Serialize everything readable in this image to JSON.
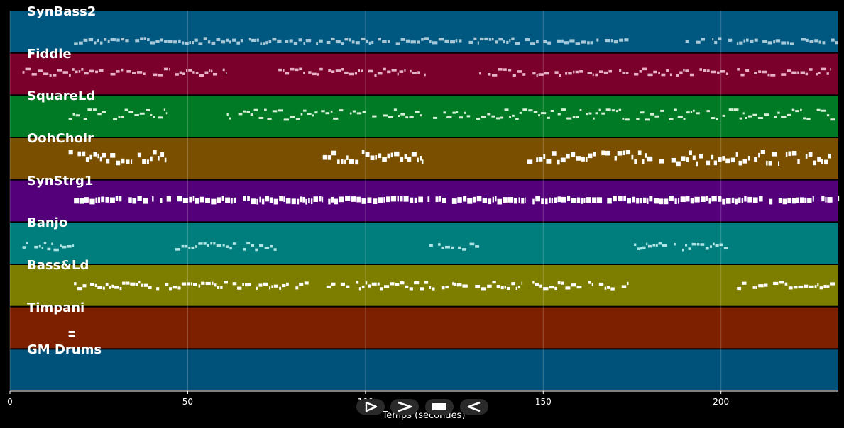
{
  "chart_data": {
    "type": "piano-roll",
    "xlabel": "Temps (secondes)",
    "xlim": [
      0,
      233
    ],
    "xticks": [
      0,
      50,
      100,
      150,
      200
    ],
    "tracks": [
      {
        "name": "SynBass2",
        "color": "#00577f",
        "note_color": "#a9c9d8",
        "segments": [
          [
            18,
            88
          ],
          [
            89,
            175
          ],
          [
            190,
            233
          ]
        ],
        "pitch_base": 0.72,
        "pitch_spread": 0.06,
        "note_h": 0.07
      },
      {
        "name": "Fiddle",
        "color": "#7a002b",
        "note_color": "#e6b3c4",
        "segments": [
          [
            3.5,
            45
          ],
          [
            46.5,
            61
          ],
          [
            75.5,
            88
          ],
          [
            89.5,
            117
          ],
          [
            132,
            145
          ],
          [
            147,
            174
          ],
          [
            175.5,
            202
          ],
          [
            204.5,
            231
          ]
        ],
        "pitch_base": 0.46,
        "pitch_spread": 0.08,
        "note_h": 0.06
      },
      {
        "name": "SquareLd",
        "color": "#007a25",
        "note_color": "#d8f0d8",
        "segments": [
          [
            16.5,
            44
          ],
          [
            61,
            87
          ],
          [
            87.5,
            116
          ],
          [
            119,
            232
          ]
        ],
        "pitch_base": 0.46,
        "pitch_spread": 0.12,
        "note_h": 0.05
      },
      {
        "name": "OohChoir",
        "color": "#7a5000",
        "note_color": "#ffffff",
        "segments": [
          [
            16.5,
            44
          ],
          [
            88,
            116
          ],
          [
            145.5,
            231
          ]
        ],
        "pitch_base": 0.48,
        "pitch_spread": 0.14,
        "note_h": 0.11
      },
      {
        "name": "SynStrg1",
        "color": "#54007a",
        "note_color": "#ffffff",
        "segments": [
          [
            18,
            88
          ],
          [
            89.5,
            145
          ],
          [
            147,
            233
          ]
        ],
        "pitch_base": 0.48,
        "pitch_spread": 0.04,
        "note_h": 0.13
      },
      {
        "name": "Banjo",
        "color": "#007d7d",
        "note_color": "#b0e4e4",
        "segments": [
          [
            3.5,
            18
          ],
          [
            46.5,
            75
          ],
          [
            118,
            132
          ],
          [
            175.5,
            202
          ]
        ],
        "pitch_base": 0.58,
        "pitch_spread": 0.08,
        "note_h": 0.06
      },
      {
        "name": "Bass&Ld",
        "color": "#7d7d00",
        "note_color": "#ffffff",
        "segments": [
          [
            18,
            84
          ],
          [
            89,
            144
          ],
          [
            147,
            174
          ],
          [
            204.5,
            232
          ]
        ],
        "pitch_base": 0.5,
        "pitch_spread": 0.08,
        "note_h": 0.07
      },
      {
        "name": "Timpani",
        "color": "#7d2000",
        "note_color": "#ffffff",
        "segments": [],
        "marks": [
          [
            16.5,
            0.6
          ],
          [
            16.5,
            0.7
          ]
        ],
        "pitch_base": 0.6,
        "pitch_spread": 0.1,
        "note_h": 0.05
      },
      {
        "name": "GM Drums",
        "color": "#00527a",
        "note_color": "#ffffff",
        "segments": [],
        "pitch_base": 0.5,
        "pitch_spread": 0.1,
        "note_h": 0.05
      }
    ]
  },
  "controls": [
    {
      "name": "play-icon",
      "icon": "play"
    },
    {
      "name": "fast-forward-icon",
      "icon": "chevron-right"
    },
    {
      "name": "stop-icon",
      "icon": "stop"
    },
    {
      "name": "rewind-icon",
      "icon": "chevron-left"
    }
  ]
}
